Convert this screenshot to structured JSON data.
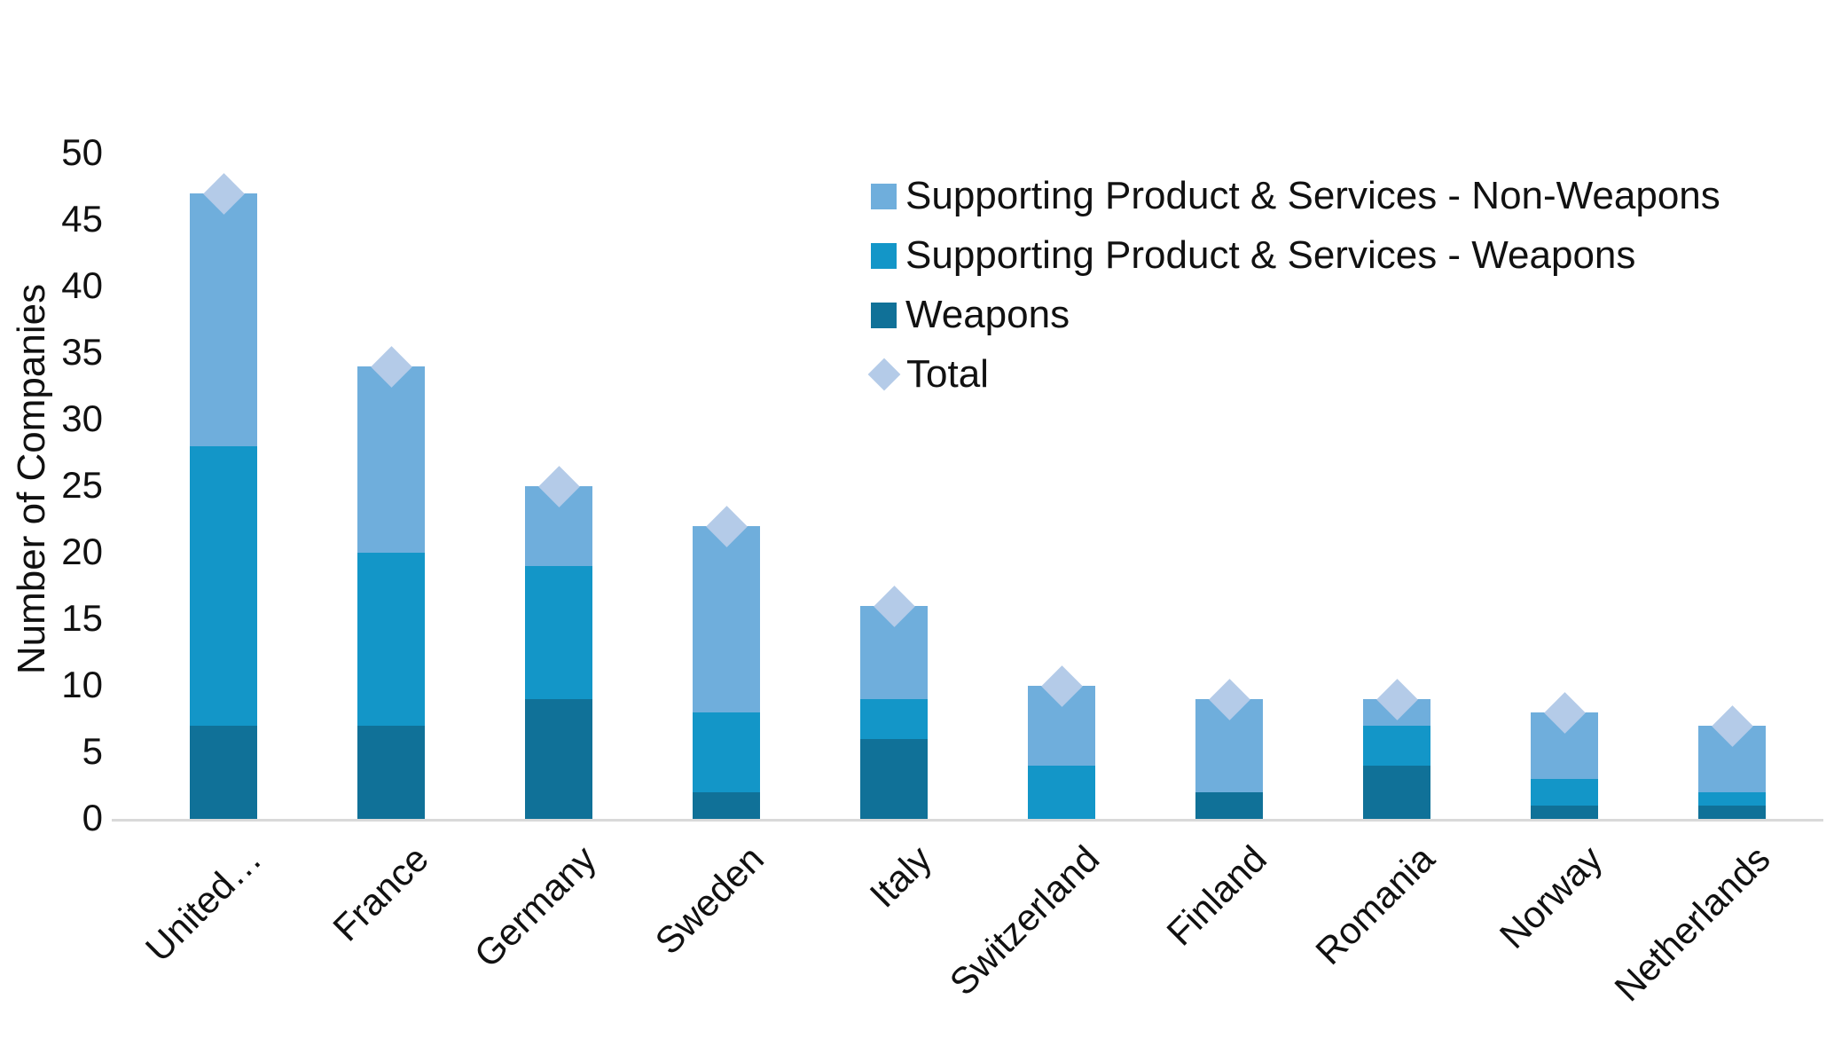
{
  "colors": {
    "non_weapons": "#6FAEDC",
    "sps_weapons": "#1396C8",
    "weapons": "#107198",
    "total": "#B4CBE8",
    "axis_line": "#D9D9D9",
    "text": "#111111"
  },
  "legend": {
    "items": [
      {
        "label": "Supporting Product & Services - Non-Weapons",
        "marker": "square",
        "color_key": "non_weapons"
      },
      {
        "label": "Supporting Product & Services - Weapons",
        "marker": "square",
        "color_key": "sps_weapons"
      },
      {
        "label": "Weapons",
        "marker": "square",
        "color_key": "weapons"
      },
      {
        "label": "Total",
        "marker": "diamond",
        "color_key": "total"
      }
    ]
  },
  "chart_data": {
    "type": "bar",
    "stacked": true,
    "title": "",
    "xlabel": "",
    "ylabel": "Number of Companies",
    "ylim": [
      0,
      50
    ],
    "yticks": [
      0,
      5,
      10,
      15,
      20,
      25,
      30,
      35,
      40,
      45,
      50
    ],
    "grid": false,
    "legend_position": "top-right",
    "categories": [
      "United…",
      "France",
      "Germany",
      "Sweden",
      "Italy",
      "Switzerland",
      "Finland",
      "Romania",
      "Norway",
      "Netherlands"
    ],
    "series": [
      {
        "name": "Weapons",
        "color_key": "weapons",
        "values": [
          7,
          7,
          9,
          2,
          6,
          0,
          2,
          4,
          1,
          1
        ]
      },
      {
        "name": "Supporting Product & Services - Weapons",
        "color_key": "sps_weapons",
        "values": [
          21,
          13,
          10,
          6,
          3,
          4,
          0,
          3,
          2,
          1
        ]
      },
      {
        "name": "Supporting Product & Services - Non-Weapons",
        "color_key": "non_weapons",
        "values": [
          19,
          14,
          6,
          14,
          7,
          6,
          7,
          2,
          5,
          5
        ]
      }
    ],
    "totals": {
      "name": "Total",
      "marker": "diamond",
      "color_key": "total",
      "values": [
        47,
        34,
        25,
        22,
        16,
        10,
        9,
        9,
        8,
        7
      ]
    }
  }
}
